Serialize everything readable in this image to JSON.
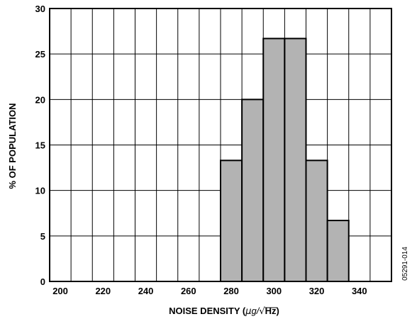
{
  "chart_data": {
    "type": "bar",
    "xlabel": "NOISE DENSITY (µg/√Hz)",
    "xlabel_parts": {
      "prefix": "NOISE DENSITY (",
      "mu": "µ",
      "g": "g/",
      "radical": "√",
      "hz": "Hz",
      "suffix": ")"
    },
    "ylabel": "% OF POPULATION",
    "xlim": [
      195,
      355
    ],
    "ylim": [
      0,
      30
    ],
    "x_ticks": [
      200,
      220,
      240,
      260,
      280,
      300,
      320,
      340
    ],
    "y_ticks": [
      0,
      5,
      10,
      15,
      20,
      25,
      30
    ],
    "x_grid": [
      205,
      215,
      225,
      235,
      245,
      255,
      265,
      275,
      285,
      295,
      305,
      315,
      325,
      335,
      345
    ],
    "grid": true,
    "bar_color": "#b3b3b3",
    "bars": [
      {
        "x0": 275,
        "x1": 285,
        "value": 13.3
      },
      {
        "x0": 285,
        "x1": 295,
        "value": 20.0
      },
      {
        "x0": 295,
        "x1": 305,
        "value": 26.7
      },
      {
        "x0": 305,
        "x1": 315,
        "value": 26.7
      },
      {
        "x0": 315,
        "x1": 325,
        "value": 13.3
      },
      {
        "x0": 325,
        "x1": 335,
        "value": 6.7
      }
    ],
    "figure_code": "05291-014"
  }
}
